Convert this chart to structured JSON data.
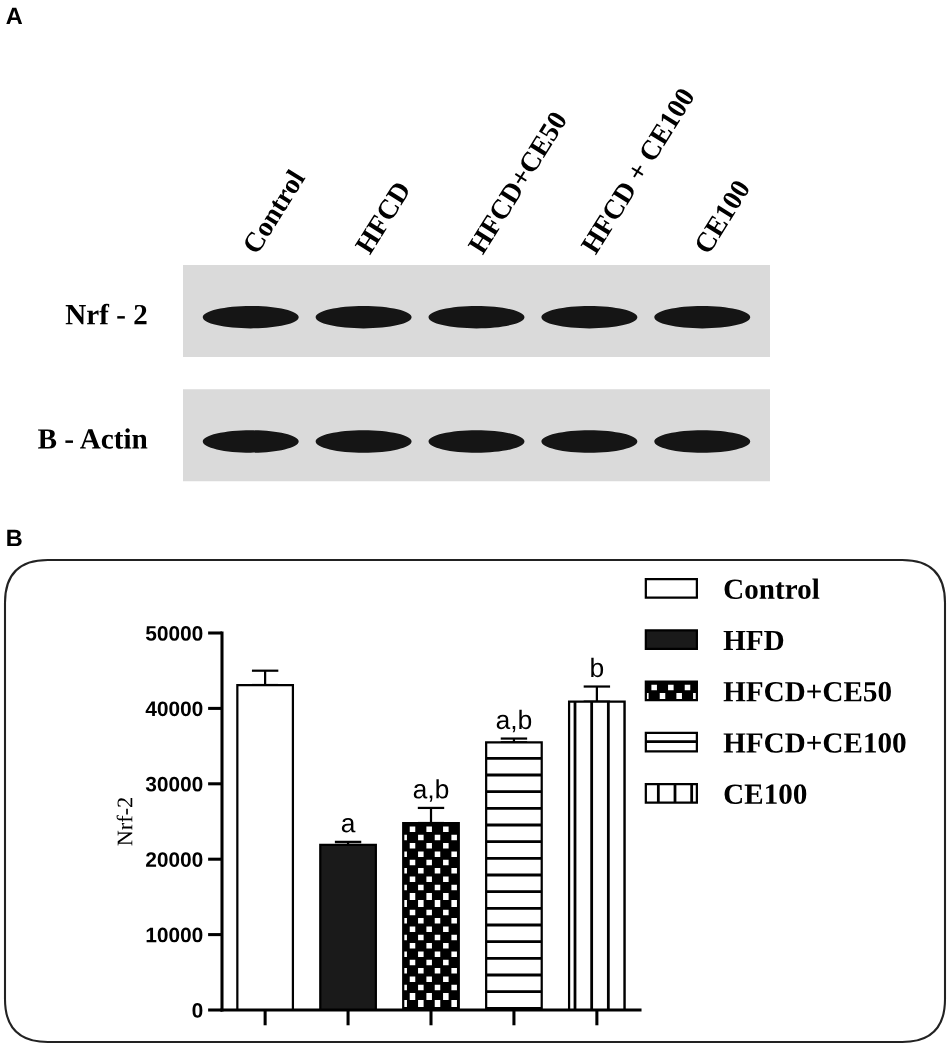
{
  "chart_data": [
    {
      "type": "other",
      "title": "A",
      "categories": [
        "Control",
        "HFCD",
        "HFCD+CE50",
        "HFCD + CE100",
        "CE100"
      ],
      "y_categories": [
        "Nrf - 2",
        "B - Actin"
      ]
    },
    {
      "type": "bar",
      "title": "B",
      "categories": [
        null,
        null,
        null,
        null,
        null
      ],
      "series": [
        {
          "name": "Control",
          "color": "#ffffff",
          "values": [
            43100,
            null,
            null,
            null,
            null
          ],
          "errors": [
            [
              43100,
              45000
            ],
            null,
            null,
            null,
            null
          ]
        },
        {
          "name": "HFD",
          "color": "#1a1a1a",
          "values": [
            null,
            21900,
            null,
            null,
            null
          ],
          "errors": [
            null,
            [
              21900,
              22300
            ],
            null,
            null,
            null
          ],
          "value_labels": [
            null,
            "a",
            null,
            null,
            null
          ]
        },
        {
          "name": "HFCD+CE50",
          "color": "#000000",
          "values": [
            null,
            null,
            24800,
            null,
            null
          ],
          "errors": [
            null,
            null,
            [
              24800,
              26800
            ],
            null,
            null
          ],
          "value_labels": [
            null,
            null,
            "a,b",
            null,
            null
          ]
        },
        {
          "name": "HFCD+CE100",
          "color": "#000000",
          "values": [
            null,
            null,
            null,
            35500,
            null
          ],
          "errors": [
            null,
            null,
            null,
            [
              35500,
              36000
            ],
            null
          ],
          "value_labels": [
            null,
            null,
            null,
            "a,b",
            null
          ]
        },
        {
          "name": "CE100",
          "color": "#000000",
          "values": [
            null,
            null,
            null,
            null,
            40900
          ],
          "errors": [
            null,
            null,
            null,
            null,
            [
              40900,
              42900
            ]
          ],
          "value_labels": [
            null,
            null,
            null,
            null,
            "b"
          ]
        }
      ],
      "ylabel": "Nrf-2",
      "ylim": [
        0,
        50000
      ],
      "yticks": [
        0,
        10000,
        20000,
        30000,
        40000,
        50000
      ],
      "tick_labels": "y",
      "legend": "right"
    }
  ]
}
